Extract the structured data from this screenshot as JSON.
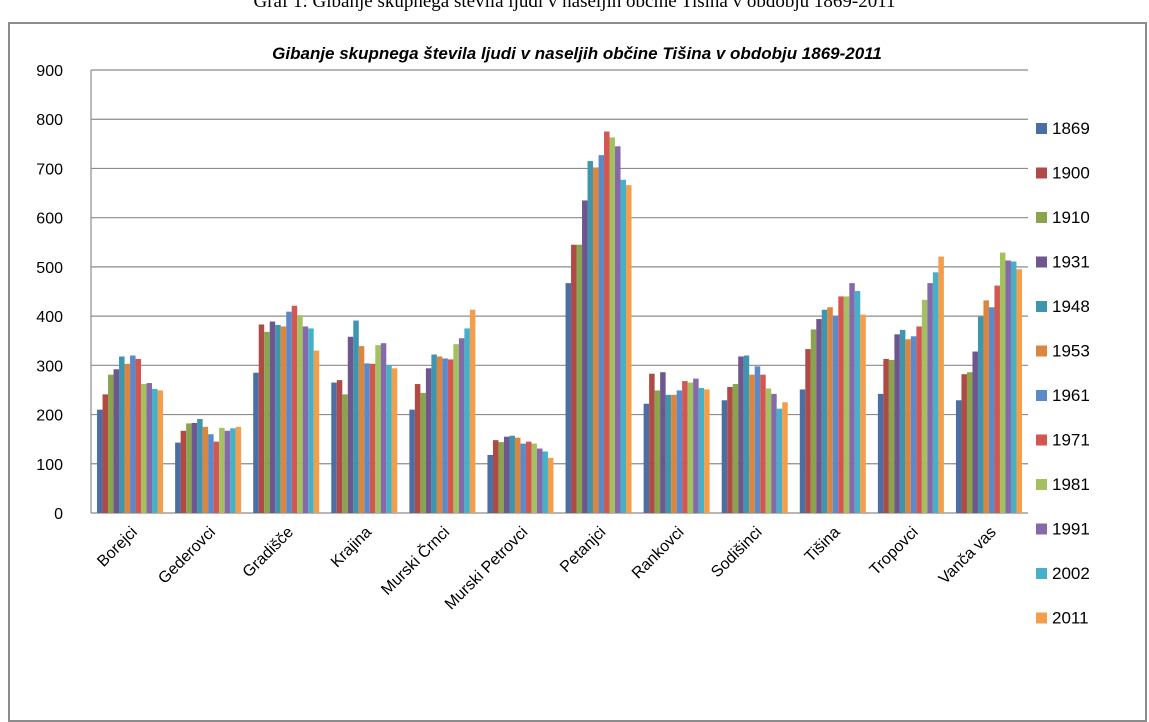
{
  "caption": "Graf 1: Gibanje skupnega števila ljudi v naseljih občine Tišina v obdobju 1869-2011",
  "chart_data": {
    "type": "bar",
    "title": "Gibanje skupnega števila ljudi v naseljih občine Tišina v obdobju 1869-2011",
    "xlabel": "",
    "ylabel": "",
    "ylim": [
      0,
      900
    ],
    "yticks": [
      0,
      100,
      200,
      300,
      400,
      500,
      600,
      700,
      800,
      900
    ],
    "grid": true,
    "legend_position": "right",
    "categories": [
      "Borejci",
      "Gederovci",
      "Gradišče",
      "Krajina",
      "Murski Črnci",
      "Murski Petrovci",
      "Petanjci",
      "Rankovci",
      "Sodišinci",
      "Tišina",
      "Tropovci",
      "Vanča vas"
    ],
    "series": [
      {
        "name": "1869",
        "color": "#4a6fa5",
        "values": [
          210,
          143,
          285,
          265,
          210,
          118,
          467,
          222,
          229,
          251,
          242,
          229
        ]
      },
      {
        "name": "1900",
        "color": "#b04a46",
        "values": [
          241,
          167,
          383,
          270,
          262,
          148,
          545,
          283,
          256,
          333,
          313,
          282
        ]
      },
      {
        "name": "1910",
        "color": "#8aa34d",
        "values": [
          281,
          182,
          368,
          241,
          244,
          144,
          545,
          249,
          262,
          373,
          311,
          286
        ]
      },
      {
        "name": "1931",
        "color": "#6f568f",
        "values": [
          292,
          183,
          389,
          358,
          294,
          155,
          635,
          286,
          318,
          394,
          363,
          328
        ]
      },
      {
        "name": "1948",
        "color": "#3d96ad",
        "values": [
          318,
          191,
          382,
          391,
          322,
          157,
          715,
          240,
          320,
          413,
          372,
          399
        ]
      },
      {
        "name": "1953",
        "color": "#dc853e",
        "values": [
          303,
          175,
          379,
          339,
          318,
          153,
          702,
          240,
          281,
          418,
          353,
          432
        ]
      },
      {
        "name": "1961",
        "color": "#5b8acb",
        "values": [
          320,
          160,
          409,
          304,
          314,
          141,
          727,
          249,
          298,
          400,
          359,
          418
        ]
      },
      {
        "name": "1971",
        "color": "#d35652",
        "values": [
          313,
          145,
          421,
          303,
          312,
          145,
          775,
          268,
          281,
          440,
          379,
          462
        ]
      },
      {
        "name": "1981",
        "color": "#a4c160",
        "values": [
          262,
          173,
          402,
          341,
          343,
          141,
          763,
          265,
          253,
          440,
          433,
          529
        ]
      },
      {
        "name": "1991",
        "color": "#8669aa",
        "values": [
          264,
          167,
          379,
          345,
          355,
          131,
          745,
          273,
          242,
          467,
          467,
          513
        ]
      },
      {
        "name": "2002",
        "color": "#46b0c9",
        "values": [
          252,
          172,
          375,
          300,
          375,
          125,
          677,
          254,
          212,
          451,
          489,
          511
        ]
      },
      {
        "name": "2011",
        "color": "#f49d4a",
        "values": [
          249,
          175,
          330,
          294,
          413,
          112,
          666,
          251,
          225,
          403,
          521,
          495
        ]
      }
    ]
  }
}
